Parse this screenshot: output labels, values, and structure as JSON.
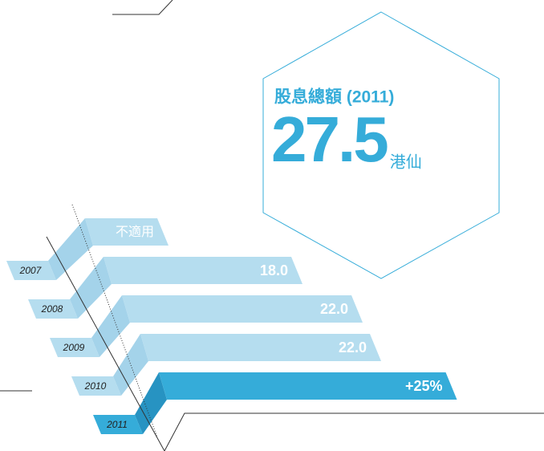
{
  "chart_data": {
    "type": "bar",
    "title": "股息總額 (2011)",
    "unit": "港仙",
    "categories": [
      "2007",
      "2008",
      "2009",
      "2010",
      "2011"
    ],
    "values": [
      null,
      18.0,
      22.0,
      22.0,
      27.5
    ],
    "value_labels": [
      "不適用",
      "18.0",
      "22.0",
      "22.0",
      null
    ],
    "growth_label": "+25%",
    "color": "#b5ddef",
    "highlight_color": "#35acd9"
  }
}
